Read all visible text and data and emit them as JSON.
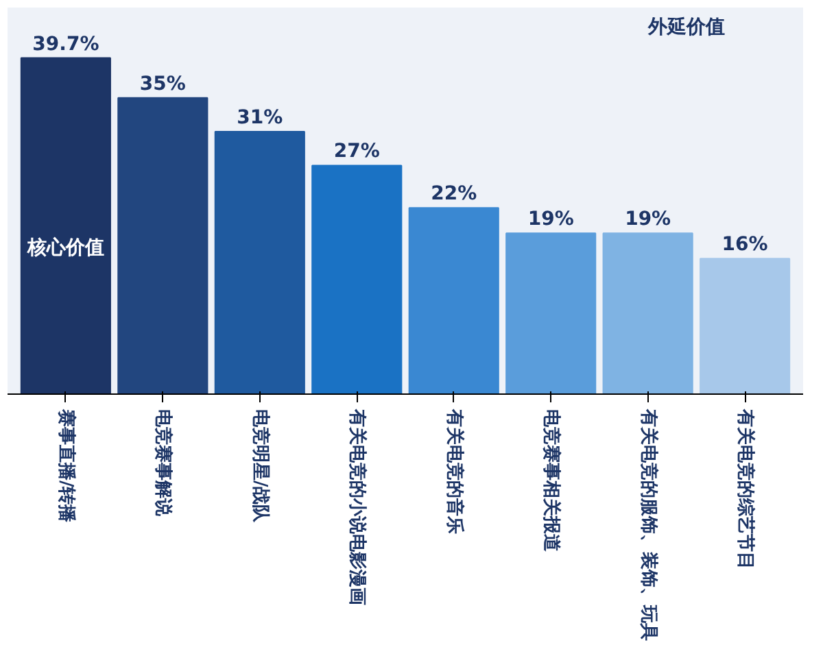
{
  "chart_data": {
    "type": "bar",
    "categories": [
      "赛事直播/转播",
      "电竞赛事解说",
      "电竞明星/战队",
      "有关电竞的小说电影漫画",
      "有关电竞的音乐",
      "电竞赛事相关报道",
      "有关电竞的服饰、装饰、玩具",
      "有关电竞的综艺节目"
    ],
    "values": [
      39.7,
      35,
      31,
      27,
      22,
      19,
      19,
      16
    ],
    "colors": [
      "#1d3566",
      "#22467f",
      "#1f5a9f",
      "#1a72c4",
      "#3a88d2",
      "#5a9ddb",
      "#7fb3e3",
      "#a7c8ea"
    ],
    "value_labels": [
      "39.7%",
      "35%",
      "31%",
      "27%",
      "22%",
      "19%",
      "19%",
      "16%"
    ],
    "annotations": [
      "核心价值",
      "外延价值"
    ],
    "grid": false
  }
}
